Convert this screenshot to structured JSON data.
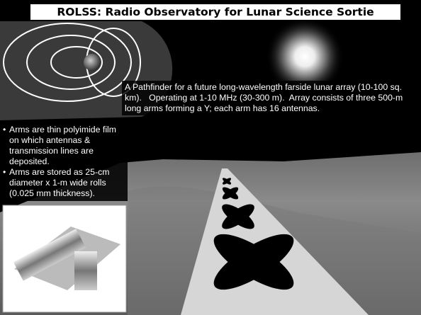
{
  "title": "ROLSS: Radio Observatory for Lunar Science Sortie",
  "description": "A Pathfinder for a future long-wavelength farside lunar array (10-100 sq. km).   Operating at 1-10 MHz (30-300 m).  Array consists of three 500-m long arms forming a Y; each arm has 16 antennas.",
  "bullets": [
    "Arms are thin polyimide film on which antennas & transmission lines are deposited.",
    "Arms are stored as 25-cm diameter x 1-m wide rolls (0.025 mm thickness)."
  ]
}
